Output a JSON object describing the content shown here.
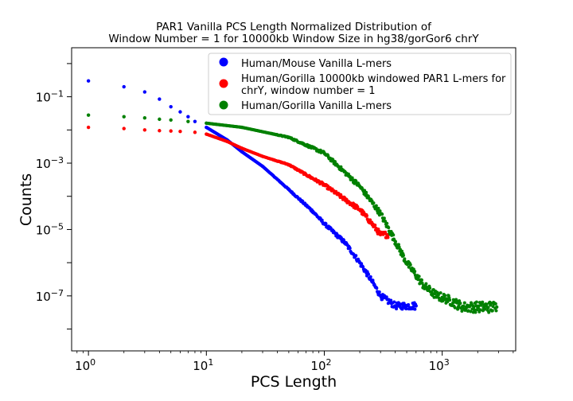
{
  "chart_data": {
    "type": "scatter",
    "title": [
      "PAR1 Vanilla PCS Length Normalized Distribution of",
      "Window Number = 1 for 10000kb Window Size in hg38/gorGor6 chrY"
    ],
    "xlabel": "PCS Length",
    "ylabel": "Counts",
    "xscale": "log",
    "yscale": "log",
    "xlim": [
      0.72,
      4200
    ],
    "ylim": [
      2.2e-09,
      3.0
    ],
    "x_ticks": [
      {
        "value": 1,
        "base": "10",
        "exp": "0"
      },
      {
        "value": 10,
        "base": "10",
        "exp": "1"
      },
      {
        "value": 100,
        "base": "10",
        "exp": "2"
      },
      {
        "value": 1000,
        "base": "10",
        "exp": "3"
      }
    ],
    "y_ticks": [
      {
        "value": 0.1,
        "base": "10",
        "exp": "−1"
      },
      {
        "value": 0.001,
        "base": "10",
        "exp": "−3"
      },
      {
        "value": 1e-05,
        "base": "10",
        "exp": "−5"
      },
      {
        "value": 1e-07,
        "base": "10",
        "exp": "−7"
      }
    ],
    "grid": false,
    "legend_position": "upper-right",
    "series": [
      {
        "name": "Human/Mouse Vanilla L-mers",
        "legend_lines": [
          "Human/Mouse Vanilla L-mers"
        ],
        "color": "#0000ff",
        "x": [
          1,
          2,
          3,
          4,
          5,
          6,
          7,
          8,
          10,
          15,
          20,
          30,
          50,
          80,
          100,
          150,
          200,
          250,
          300,
          400,
          500,
          600
        ],
        "y": [
          0.3,
          0.2,
          0.14,
          0.085,
          0.05,
          0.035,
          0.025,
          0.018,
          0.012,
          0.005,
          0.0022,
          0.0008,
          0.00016,
          3.5e-05,
          1.5e-05,
          4e-06,
          1e-06,
          3e-07,
          1e-07,
          5e-08,
          5e-08,
          5e-08
        ]
      },
      {
        "name": "Human/Gorilla 10000kb windowed PAR1 L-mers for chrY, window number = 1",
        "legend_lines": [
          "Human/Gorilla 10000kb windowed PAR1 L-mers for",
          " chrY, window number = 1"
        ],
        "color": "#ff0000",
        "x": [
          1,
          2,
          3,
          4,
          5,
          6,
          8,
          10,
          15,
          20,
          30,
          50,
          70,
          100,
          150,
          200,
          250,
          300,
          350
        ],
        "y": [
          0.012,
          0.011,
          0.01,
          0.0095,
          0.0093,
          0.009,
          0.0085,
          0.0075,
          0.0045,
          0.0028,
          0.0016,
          0.0009,
          0.00045,
          0.00022,
          8e-05,
          4e-05,
          1.6e-05,
          7e-06,
          7e-06
        ]
      },
      {
        "name": "Human/Gorilla Vanilla L-mers",
        "legend_lines": [
          "Human/Gorilla Vanilla L-mers"
        ],
        "color": "#008000",
        "x": [
          1,
          2,
          3,
          4,
          5,
          7,
          10,
          20,
          50,
          100,
          200,
          300,
          500,
          700,
          900,
          1100,
          1500,
          2000,
          2900
        ],
        "y": [
          0.028,
          0.025,
          0.023,
          0.021,
          0.02,
          0.018,
          0.016,
          0.012,
          0.006,
          0.002,
          0.0002,
          3e-05,
          1e-06,
          2e-07,
          1e-07,
          8e-08,
          4.6e-08,
          4.6e-08,
          4.6e-08
        ]
      }
    ]
  }
}
